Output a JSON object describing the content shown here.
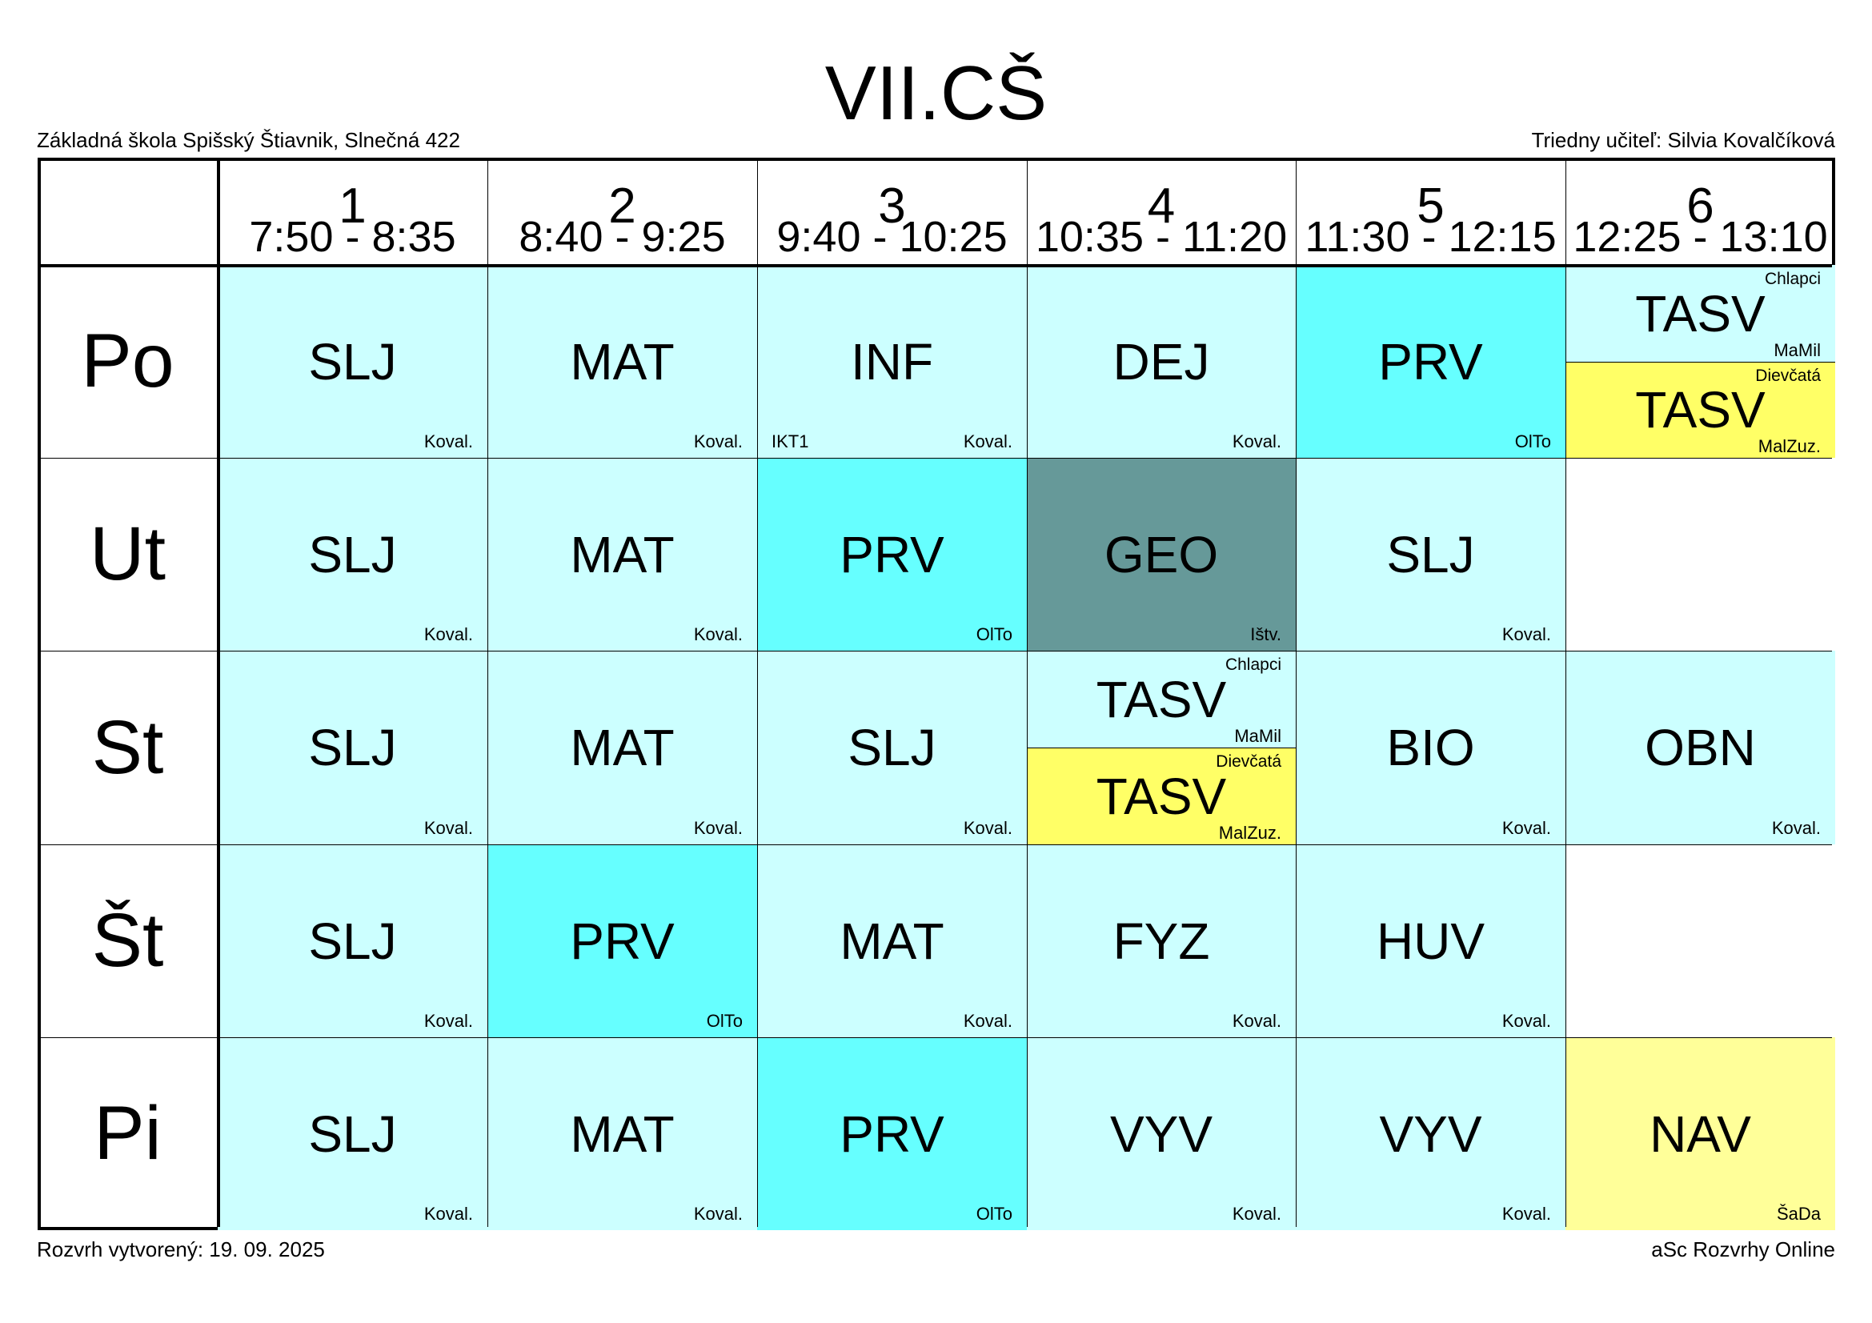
{
  "header": {
    "title": "VII.CŠ",
    "school": "Základná škola Spišský Štiavnik, Slnečná 422",
    "class_teacher": "Triedny učiteľ: Silvia Kovalčíková"
  },
  "footer": {
    "created": "Rozvrh vytvorený: 19. 09. 2025",
    "generator": "aSc Rozvrhy Online"
  },
  "colors": {
    "light_cyan": "#CCFFFF",
    "cyan": "#66FFFF",
    "teal": "#669999",
    "yellow": "#FFFF66",
    "light_yellow": "#FFFF99",
    "empty": "#FFFFFF"
  },
  "periods": [
    {
      "num": "1",
      "start": "7:50",
      "end": "8:35"
    },
    {
      "num": "2",
      "start": "8:40",
      "end": "9:25"
    },
    {
      "num": "3",
      "start": "9:40",
      "end": "10:25"
    },
    {
      "num": "4",
      "start": "10:35",
      "end": "11:20"
    },
    {
      "num": "5",
      "start": "11:30",
      "end": "12:15"
    },
    {
      "num": "6",
      "start": "12:25",
      "end": "13:10"
    }
  ],
  "days": [
    {
      "label": "Po",
      "lessons": [
        {
          "subject": "SLJ",
          "teacher": "Koval.",
          "color": "#CCFFFF"
        },
        {
          "subject": "MAT",
          "teacher": "Koval.",
          "color": "#CCFFFF"
        },
        {
          "subject": "INF",
          "teacher": "Koval.",
          "room": "IKT1",
          "color": "#CCFFFF"
        },
        {
          "subject": "DEJ",
          "teacher": "Koval.",
          "color": "#CCFFFF"
        },
        {
          "subject": "PRV",
          "teacher": "OlTo",
          "color": "#66FFFF"
        },
        {
          "split": [
            {
              "subject": "TASV",
              "group": "Chlapci",
              "teacher": "MaMil",
              "color": "#CCFFFF"
            },
            {
              "subject": "TASV",
              "group": "Dievčatá",
              "teacher": "MalZuz.",
              "color": "#FFFF66"
            }
          ]
        }
      ]
    },
    {
      "label": "Ut",
      "lessons": [
        {
          "subject": "SLJ",
          "teacher": "Koval.",
          "color": "#CCFFFF"
        },
        {
          "subject": "MAT",
          "teacher": "Koval.",
          "color": "#CCFFFF"
        },
        {
          "subject": "PRV",
          "teacher": "OlTo",
          "color": "#66FFFF"
        },
        {
          "subject": "GEO",
          "teacher": "Ištv.",
          "color": "#669999"
        },
        {
          "subject": "SLJ",
          "teacher": "Koval.",
          "color": "#CCFFFF"
        },
        {
          "empty": true
        }
      ]
    },
    {
      "label": "St",
      "lessons": [
        {
          "subject": "SLJ",
          "teacher": "Koval.",
          "color": "#CCFFFF"
        },
        {
          "subject": "MAT",
          "teacher": "Koval.",
          "color": "#CCFFFF"
        },
        {
          "subject": "SLJ",
          "teacher": "Koval.",
          "color": "#CCFFFF"
        },
        {
          "split": [
            {
              "subject": "TASV",
              "group": "Chlapci",
              "teacher": "MaMil",
              "color": "#CCFFFF"
            },
            {
              "subject": "TASV",
              "group": "Dievčatá",
              "teacher": "MalZuz.",
              "color": "#FFFF66"
            }
          ]
        },
        {
          "subject": "BIO",
          "teacher": "Koval.",
          "color": "#CCFFFF"
        },
        {
          "subject": "OBN",
          "teacher": "Koval.",
          "color": "#CCFFFF"
        }
      ]
    },
    {
      "label": "Št",
      "lessons": [
        {
          "subject": "SLJ",
          "teacher": "Koval.",
          "color": "#CCFFFF"
        },
        {
          "subject": "PRV",
          "teacher": "OlTo",
          "color": "#66FFFF"
        },
        {
          "subject": "MAT",
          "teacher": "Koval.",
          "color": "#CCFFFF"
        },
        {
          "subject": "FYZ",
          "teacher": "Koval.",
          "color": "#CCFFFF"
        },
        {
          "subject": "HUV",
          "teacher": "Koval.",
          "color": "#CCFFFF"
        },
        {
          "empty": true
        }
      ]
    },
    {
      "label": "Pi",
      "lessons": [
        {
          "subject": "SLJ",
          "teacher": "Koval.",
          "color": "#CCFFFF"
        },
        {
          "subject": "MAT",
          "teacher": "Koval.",
          "color": "#CCFFFF"
        },
        {
          "subject": "PRV",
          "teacher": "OlTo",
          "color": "#66FFFF"
        },
        {
          "subject": "VYV",
          "teacher": "Koval.",
          "color": "#CCFFFF"
        },
        {
          "subject": "VYV",
          "teacher": "Koval.",
          "color": "#CCFFFF"
        },
        {
          "subject": "NAV",
          "teacher": "ŠaDa",
          "color": "#FFFF99"
        }
      ]
    }
  ]
}
